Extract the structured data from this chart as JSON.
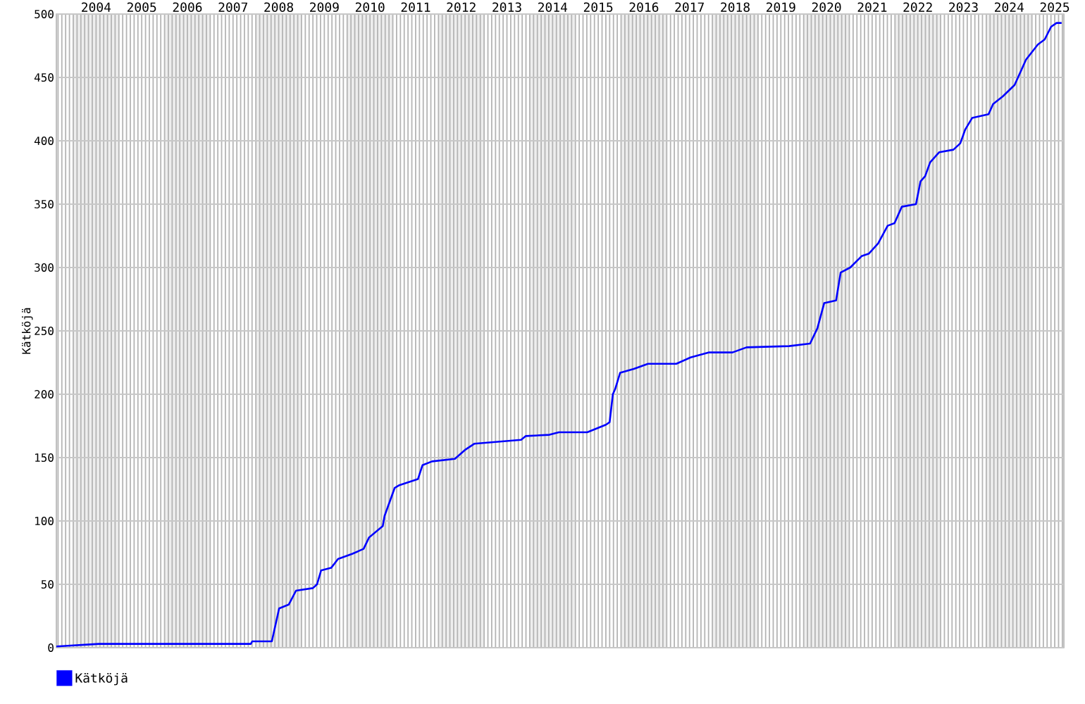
{
  "chart_data": {
    "type": "line",
    "ylabel": "Kätköjä",
    "x": [
      2003.63,
      2004.56,
      2007.89,
      2007.92,
      2008.35,
      2008.51,
      2008.72,
      2008.88,
      2009.25,
      2009.34,
      2009.43,
      2009.65,
      2009.8,
      2010.11,
      2010.36,
      2010.48,
      2010.78,
      2010.82,
      2011.04,
      2011.13,
      2011.55,
      2011.65,
      2011.86,
      2012.36,
      2012.58,
      2012.79,
      2013.81,
      2013.91,
      2014.43,
      2014.64,
      2015.26,
      2015.67,
      2015.75,
      2015.82,
      2015.87,
      2015.98,
      2016.28,
      2016.59,
      2017.21,
      2017.52,
      2017.93,
      2018.44,
      2018.75,
      2019.68,
      2020.14,
      2020.3,
      2020.45,
      2020.71,
      2020.81,
      2021.02,
      2021.27,
      2021.43,
      2021.63,
      2021.84,
      2021.99,
      2022.15,
      2022.46,
      2022.56,
      2022.66,
      2022.77,
      2022.97,
      2023.28,
      2023.43,
      2023.54,
      2023.69,
      2024.05,
      2024.15,
      2024.36,
      2024.62,
      2024.77,
      2024.87,
      2025.13,
      2025.28,
      2025.42,
      2025.54,
      2025.65
    ],
    "series": [
      {
        "name": "Kätköjä",
        "color": "#0000ff",
        "values": [
          1,
          3,
          3,
          5,
          5,
          31,
          34,
          45,
          47,
          50,
          61,
          63,
          70,
          74,
          78,
          87,
          96,
          104,
          126,
          128,
          133,
          144,
          147,
          149,
          156,
          161,
          164,
          167,
          168,
          170,
          170,
          176,
          178,
          200,
          204,
          217,
          220,
          224,
          224,
          229,
          233,
          233,
          237,
          238,
          240,
          252,
          272,
          274,
          296,
          300,
          309,
          311,
          319,
          333,
          335,
          348,
          350,
          368,
          372,
          383,
          391,
          393,
          398,
          409,
          418,
          421,
          429,
          435,
          444,
          456,
          464,
          476,
          480,
          490,
          493,
          493
        ]
      }
    ],
    "xlim": [
      2003.63,
      2025.7
    ],
    "ylim": [
      0,
      500
    ],
    "xticks": [
      {
        "value": 2004.5,
        "label": "2004"
      },
      {
        "value": 2005.5,
        "label": "2005"
      },
      {
        "value": 2006.5,
        "label": "2006"
      },
      {
        "value": 2007.5,
        "label": "2007"
      },
      {
        "value": 2008.5,
        "label": "2008"
      },
      {
        "value": 2009.5,
        "label": "2009"
      },
      {
        "value": 2010.5,
        "label": "2010"
      },
      {
        "value": 2011.5,
        "label": "2011"
      },
      {
        "value": 2012.5,
        "label": "2012"
      },
      {
        "value": 2013.5,
        "label": "2013"
      },
      {
        "value": 2014.5,
        "label": "2014"
      },
      {
        "value": 2015.5,
        "label": "2015"
      },
      {
        "value": 2016.5,
        "label": "2016"
      },
      {
        "value": 2017.5,
        "label": "2017"
      },
      {
        "value": 2018.5,
        "label": "2018"
      },
      {
        "value": 2019.5,
        "label": "2019"
      },
      {
        "value": 2020.5,
        "label": "2020"
      },
      {
        "value": 2021.5,
        "label": "2021"
      },
      {
        "value": 2022.5,
        "label": "2022"
      },
      {
        "value": 2023.5,
        "label": "2023"
      },
      {
        "value": 2024.5,
        "label": "2024"
      },
      {
        "value": 2025.5,
        "label": "2025"
      }
    ],
    "yticks": [
      0,
      50,
      100,
      150,
      200,
      250,
      300,
      350,
      400,
      450,
      500
    ],
    "bands": [
      {
        "axis": "x",
        "from": 2004,
        "to": 2005,
        "color": "#eeeeee"
      },
      {
        "axis": "x",
        "from": 2006,
        "to": 2007,
        "color": "#eeeeee"
      },
      {
        "axis": "x",
        "from": 2008,
        "to": 2009,
        "color": "#eeeeee"
      },
      {
        "axis": "x",
        "from": 2010,
        "to": 2011,
        "color": "#eeeeee"
      },
      {
        "axis": "x",
        "from": 2012,
        "to": 2013,
        "color": "#eeeeee"
      },
      {
        "axis": "x",
        "from": 2014,
        "to": 2015,
        "color": "#eeeeee"
      },
      {
        "axis": "x",
        "from": 2016,
        "to": 2017,
        "color": "#eeeeee"
      },
      {
        "axis": "x",
        "from": 2018,
        "to": 2019,
        "color": "#eeeeee"
      },
      {
        "axis": "x",
        "from": 2020,
        "to": 2021,
        "color": "#eeeeee"
      },
      {
        "axis": "x",
        "from": 2022,
        "to": 2023,
        "color": "#eeeeee"
      },
      {
        "axis": "x",
        "from": 2024,
        "to": 2025,
        "color": "#eeeeee"
      }
    ],
    "grid": true,
    "legend": "bottom left",
    "marker": "none",
    "line_style": "solid"
  }
}
